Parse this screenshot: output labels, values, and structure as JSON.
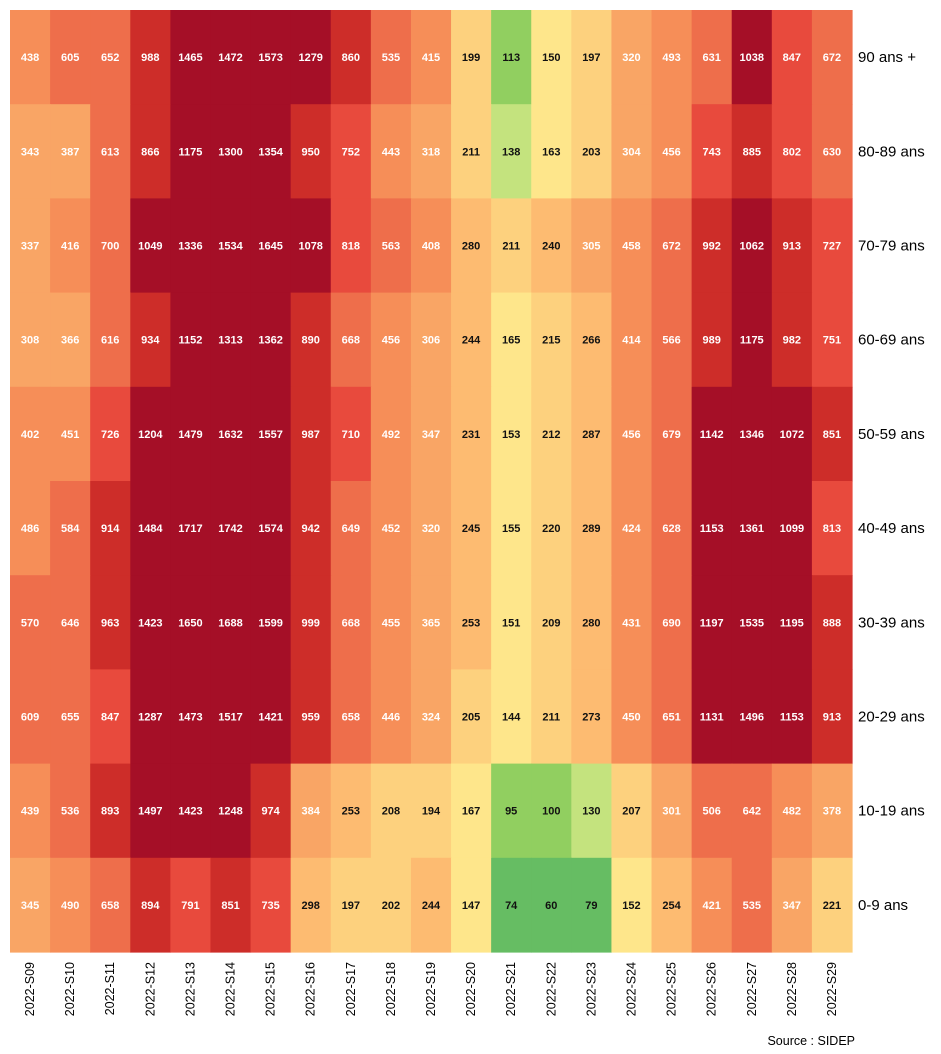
{
  "chart_data": {
    "type": "heatmap",
    "x": [
      "2022-S09",
      "2022-S10",
      "2022-S11",
      "2022-S12",
      "2022-S13",
      "2022-S14",
      "2022-S15",
      "2022-S16",
      "2022-S17",
      "2022-S18",
      "2022-S19",
      "2022-S20",
      "2022-S21",
      "2022-S22",
      "2022-S23",
      "2022-S24",
      "2022-S25",
      "2022-S26",
      "2022-S27",
      "2022-S28",
      "2022-S29"
    ],
    "y": [
      "90 ans +",
      "80-89 ans",
      "70-79 ans",
      "60-69 ans",
      "50-59 ans",
      "40-49 ans",
      "30-39 ans",
      "20-29 ans",
      "10-19 ans",
      "0-9 ans"
    ],
    "values": [
      [
        438,
        605,
        652,
        988,
        1465,
        1472,
        1573,
        1279,
        860,
        535,
        415,
        199,
        113,
        150,
        197,
        320,
        493,
        631,
        1038,
        847,
        672
      ],
      [
        343,
        387,
        613,
        866,
        1175,
        1300,
        1354,
        950,
        752,
        443,
        318,
        211,
        138,
        163,
        203,
        304,
        456,
        743,
        885,
        802,
        630
      ],
      [
        337,
        416,
        700,
        1049,
        1336,
        1534,
        1645,
        1078,
        818,
        563,
        408,
        280,
        211,
        240,
        305,
        458,
        672,
        992,
        1062,
        913,
        727
      ],
      [
        308,
        366,
        616,
        934,
        1152,
        1313,
        1362,
        890,
        668,
        456,
        306,
        244,
        165,
        215,
        266,
        414,
        566,
        989,
        1175,
        982,
        751
      ],
      [
        402,
        451,
        726,
        1204,
        1479,
        1632,
        1557,
        987,
        710,
        492,
        347,
        231,
        153,
        212,
        287,
        456,
        679,
        1142,
        1346,
        1072,
        851
      ],
      [
        486,
        584,
        914,
        1484,
        1717,
        1742,
        1574,
        942,
        649,
        452,
        320,
        245,
        155,
        220,
        289,
        424,
        628,
        1153,
        1361,
        1099,
        813
      ],
      [
        570,
        646,
        963,
        1423,
        1650,
        1688,
        1599,
        999,
        668,
        455,
        365,
        253,
        151,
        209,
        280,
        431,
        690,
        1197,
        1535,
        1195,
        888
      ],
      [
        609,
        655,
        847,
        1287,
        1473,
        1517,
        1421,
        959,
        658,
        446,
        324,
        205,
        144,
        211,
        273,
        450,
        651,
        1131,
        1496,
        1153,
        913
      ],
      [
        439,
        536,
        893,
        1497,
        1423,
        1248,
        974,
        384,
        253,
        208,
        194,
        167,
        95,
        100,
        130,
        207,
        301,
        506,
        642,
        482,
        378
      ],
      [
        345,
        490,
        658,
        894,
        791,
        851,
        735,
        298,
        197,
        202,
        244,
        147,
        74,
        60,
        79,
        152,
        254,
        421,
        535,
        347,
        221
      ]
    ],
    "color_scale": [
      {
        "max": 80,
        "color": "#66bd63"
      },
      {
        "max": 115,
        "color": "#91cf60"
      },
      {
        "max": 140,
        "color": "#c4e37e"
      },
      {
        "max": 170,
        "color": "#fee68b"
      },
      {
        "max": 230,
        "color": "#fdd17e"
      },
      {
        "max": 300,
        "color": "#fdbb71"
      },
      {
        "max": 400,
        "color": "#f9a565"
      },
      {
        "max": 500,
        "color": "#f68e58"
      },
      {
        "max": 700,
        "color": "#ee6e4b"
      },
      {
        "max": 850,
        "color": "#e84a3d"
      },
      {
        "max": 1000,
        "color": "#cd2d29"
      },
      {
        "max": 100000,
        "color": "#a50f27"
      }
    ],
    "dark_text_max": 300,
    "dark_text_color": "#111111",
    "light_text_color": "#ffffff",
    "source": "Source : SIDEP"
  }
}
